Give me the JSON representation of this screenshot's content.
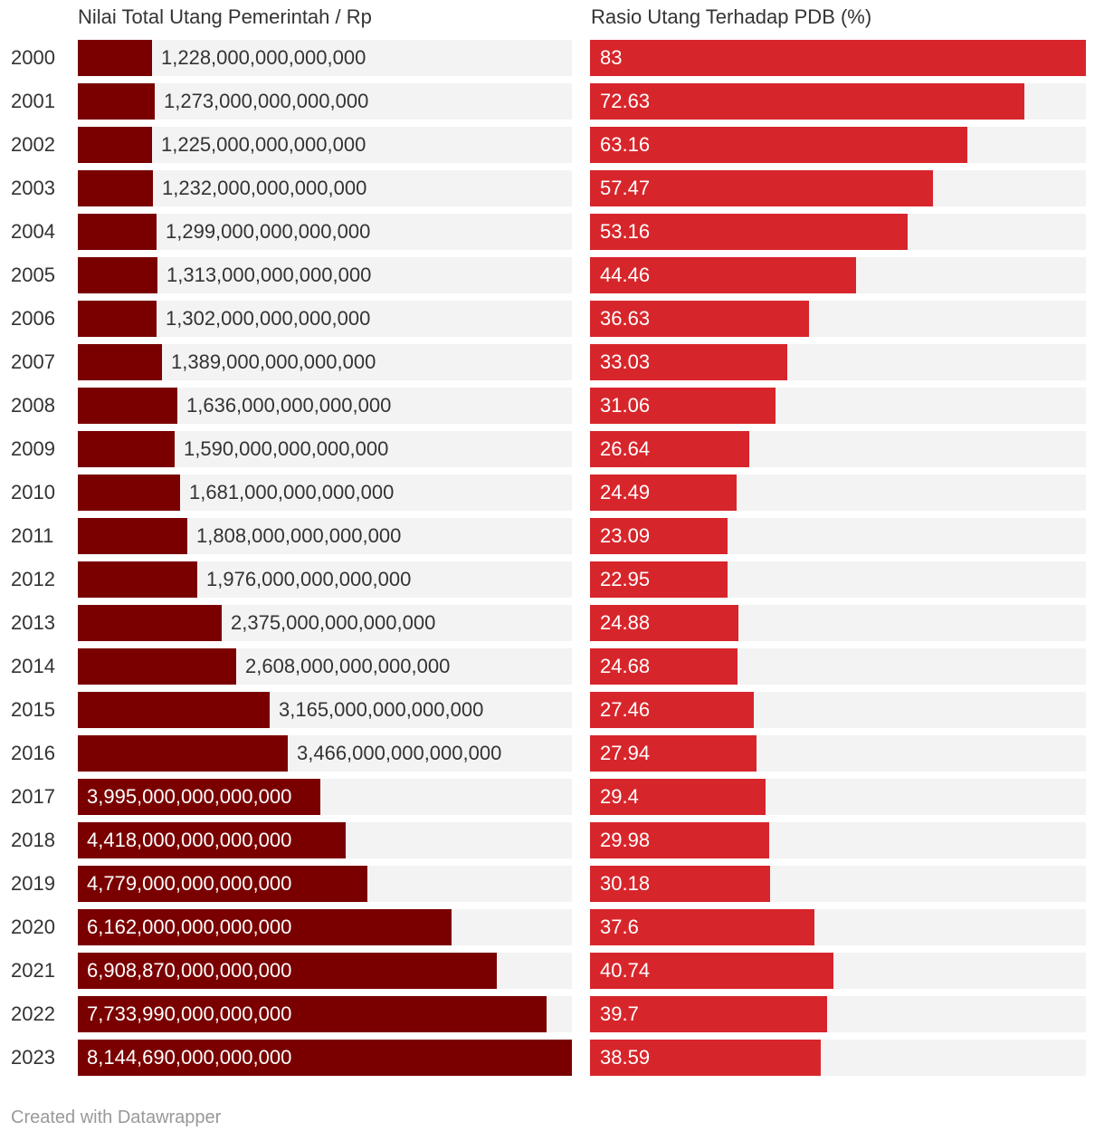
{
  "colors": {
    "left_bar": "#7a0000",
    "right_bar": "#d7262b",
    "track": "#f3f3f3"
  },
  "footer": "Created with Datawrapper",
  "chart_data": [
    {
      "type": "bar",
      "orientation": "horizontal",
      "title": "Nilai Total Utang Pemerintah / Rp",
      "categories": [
        "2000",
        "2001",
        "2002",
        "2003",
        "2004",
        "2005",
        "2006",
        "2007",
        "2008",
        "2009",
        "2010",
        "2011",
        "2012",
        "2013",
        "2014",
        "2015",
        "2016",
        "2017",
        "2018",
        "2019",
        "2020",
        "2021",
        "2022",
        "2023"
      ],
      "values": [
        1228000000000000,
        1273000000000000,
        1225000000000000,
        1232000000000000,
        1299000000000000,
        1313000000000000,
        1302000000000000,
        1389000000000000,
        1636000000000000,
        1590000000000000,
        1681000000000000,
        1808000000000000,
        1976000000000000,
        2375000000000000,
        2608000000000000,
        3165000000000000,
        3466000000000000,
        3995000000000000,
        4418000000000000,
        4779000000000000,
        6162000000000000,
        6908870000000000,
        7733990000000000,
        8144690000000000
      ],
      "labels": [
        "1,228,000,000,000,000",
        "1,273,000,000,000,000",
        "1,225,000,000,000,000",
        "1,232,000,000,000,000",
        "1,299,000,000,000,000",
        "1,313,000,000,000,000",
        "1,302,000,000,000,000",
        "1,389,000,000,000,000",
        "1,636,000,000,000,000",
        "1,590,000,000,000,000",
        "1,681,000,000,000,000",
        "1,808,000,000,000,000",
        "1,976,000,000,000,000",
        "2,375,000,000,000,000",
        "2,608,000,000,000,000",
        "3,165,000,000,000,000",
        "3,466,000,000,000,000",
        "3,995,000,000,000,000",
        "4,418,000,000,000,000",
        "4,779,000,000,000,000",
        "6,162,000,000,000,000",
        "6,908,870,000,000,000",
        "7,733,990,000,000,000",
        "8,144,690,000,000,000"
      ],
      "xlim": [
        0,
        8144690000000000
      ]
    },
    {
      "type": "bar",
      "orientation": "horizontal",
      "title": "Rasio Utang Terhadap PDB (%)",
      "categories": [
        "2000",
        "2001",
        "2002",
        "2003",
        "2004",
        "2005",
        "2006",
        "2007",
        "2008",
        "2009",
        "2010",
        "2011",
        "2012",
        "2013",
        "2014",
        "2015",
        "2016",
        "2017",
        "2018",
        "2019",
        "2020",
        "2021",
        "2022",
        "2023"
      ],
      "values": [
        83,
        72.63,
        63.16,
        57.47,
        53.16,
        44.46,
        36.63,
        33.03,
        31.06,
        26.64,
        24.49,
        23.09,
        22.95,
        24.88,
        24.68,
        27.46,
        27.94,
        29.4,
        29.98,
        30.18,
        37.6,
        40.74,
        39.7,
        38.59
      ],
      "labels": [
        "83",
        "72.63",
        "63.16",
        "57.47",
        "53.16",
        "44.46",
        "36.63",
        "33.03",
        "31.06",
        "26.64",
        "24.49",
        "23.09",
        "22.95",
        "24.88",
        "24.68",
        "27.46",
        "27.94",
        "29.4",
        "29.98",
        "30.18",
        "37.6",
        "40.74",
        "39.7",
        "38.59"
      ],
      "xlim": [
        0,
        83
      ]
    }
  ]
}
